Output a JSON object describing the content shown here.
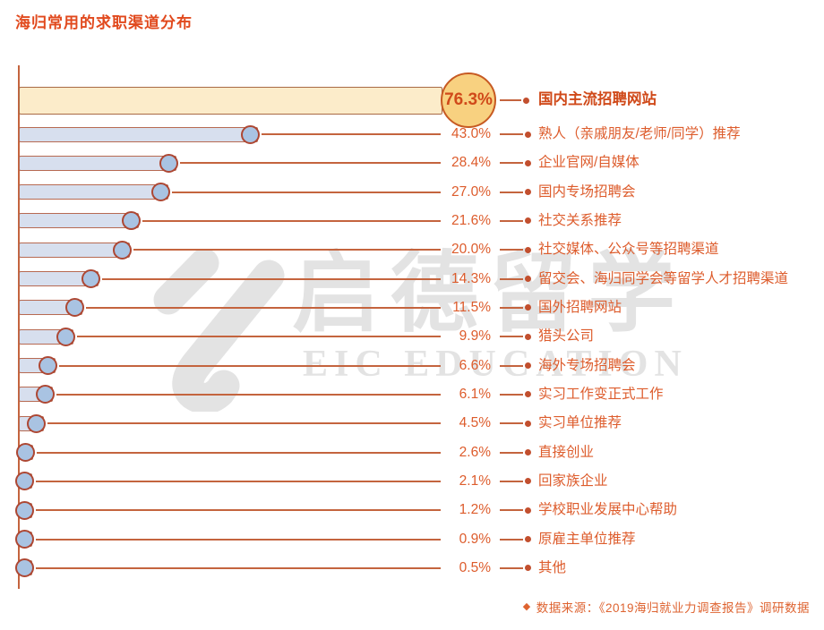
{
  "title": "海归常用的求职渠道分布",
  "watermark": {
    "logo_icon": "eic-swoosh-logo",
    "cn": "启德留学",
    "en": "EIC EDUCATION"
  },
  "source_note": {
    "diamond_icon": "◆",
    "text": "数据来源：《2019海归就业力调查报告》调研数据"
  },
  "colors": {
    "bg": "#ffffff",
    "accent": "#e1491d",
    "text-orange": "#dd5c2c",
    "hl-text": "#d04a1a",
    "line": "#c4643e",
    "line-dark": "#c24f2e",
    "bar-fill": "#d7dfee",
    "bar-border": "#b76a52",
    "circle-fill": "#a9c3e2",
    "circle-border": "#ad4733",
    "hl-bar-fill": "#fcecca",
    "hl-bar-border": "#a96a45",
    "hl-circle-fill": "#f8d180",
    "hl-circle-border": "#c75a22",
    "watermark": "#e3e3e3",
    "footer": "#de6330"
  },
  "chart_data": {
    "type": "bar",
    "orientation": "horizontal",
    "title": "海归常用的求职渠道分布",
    "xlabel": "",
    "ylabel": "",
    "unit": "%",
    "xlim": [
      0,
      80
    ],
    "grid": false,
    "legend": "none",
    "highlight_index": 0,
    "categories": [
      "国内主流招聘网站",
      "熟人（亲戚朋友/老师/同学）推荐",
      "企业官网/自媒体",
      "国内专场招聘会",
      "社交关系推荐",
      "社交媒体、公众号等招聘渠道",
      "留交会、海归同学会等留学人才招聘渠道",
      "国外招聘网站",
      "猎头公司",
      "海外专场招聘会",
      "实习工作变正式工作",
      "实习单位推荐",
      "直接创业",
      "回家族企业",
      "学校职业发展中心帮助",
      "原雇主单位推荐",
      "其他"
    ],
    "values": [
      76.3,
      43.0,
      28.4,
      27.0,
      21.6,
      20.0,
      14.3,
      11.5,
      9.9,
      6.6,
      6.1,
      4.5,
      2.6,
      2.1,
      1.2,
      0.9,
      0.5
    ],
    "value_labels": [
      "76.3%",
      "43.0%",
      "28.4%",
      "27.0%",
      "21.6%",
      "20.0%",
      "14.3%",
      "11.5%",
      "9.9%",
      "6.6%",
      "6.1%",
      "4.5%",
      "2.6%",
      "2.1%",
      "1.2%",
      "0.9%",
      "0.5%"
    ]
  }
}
